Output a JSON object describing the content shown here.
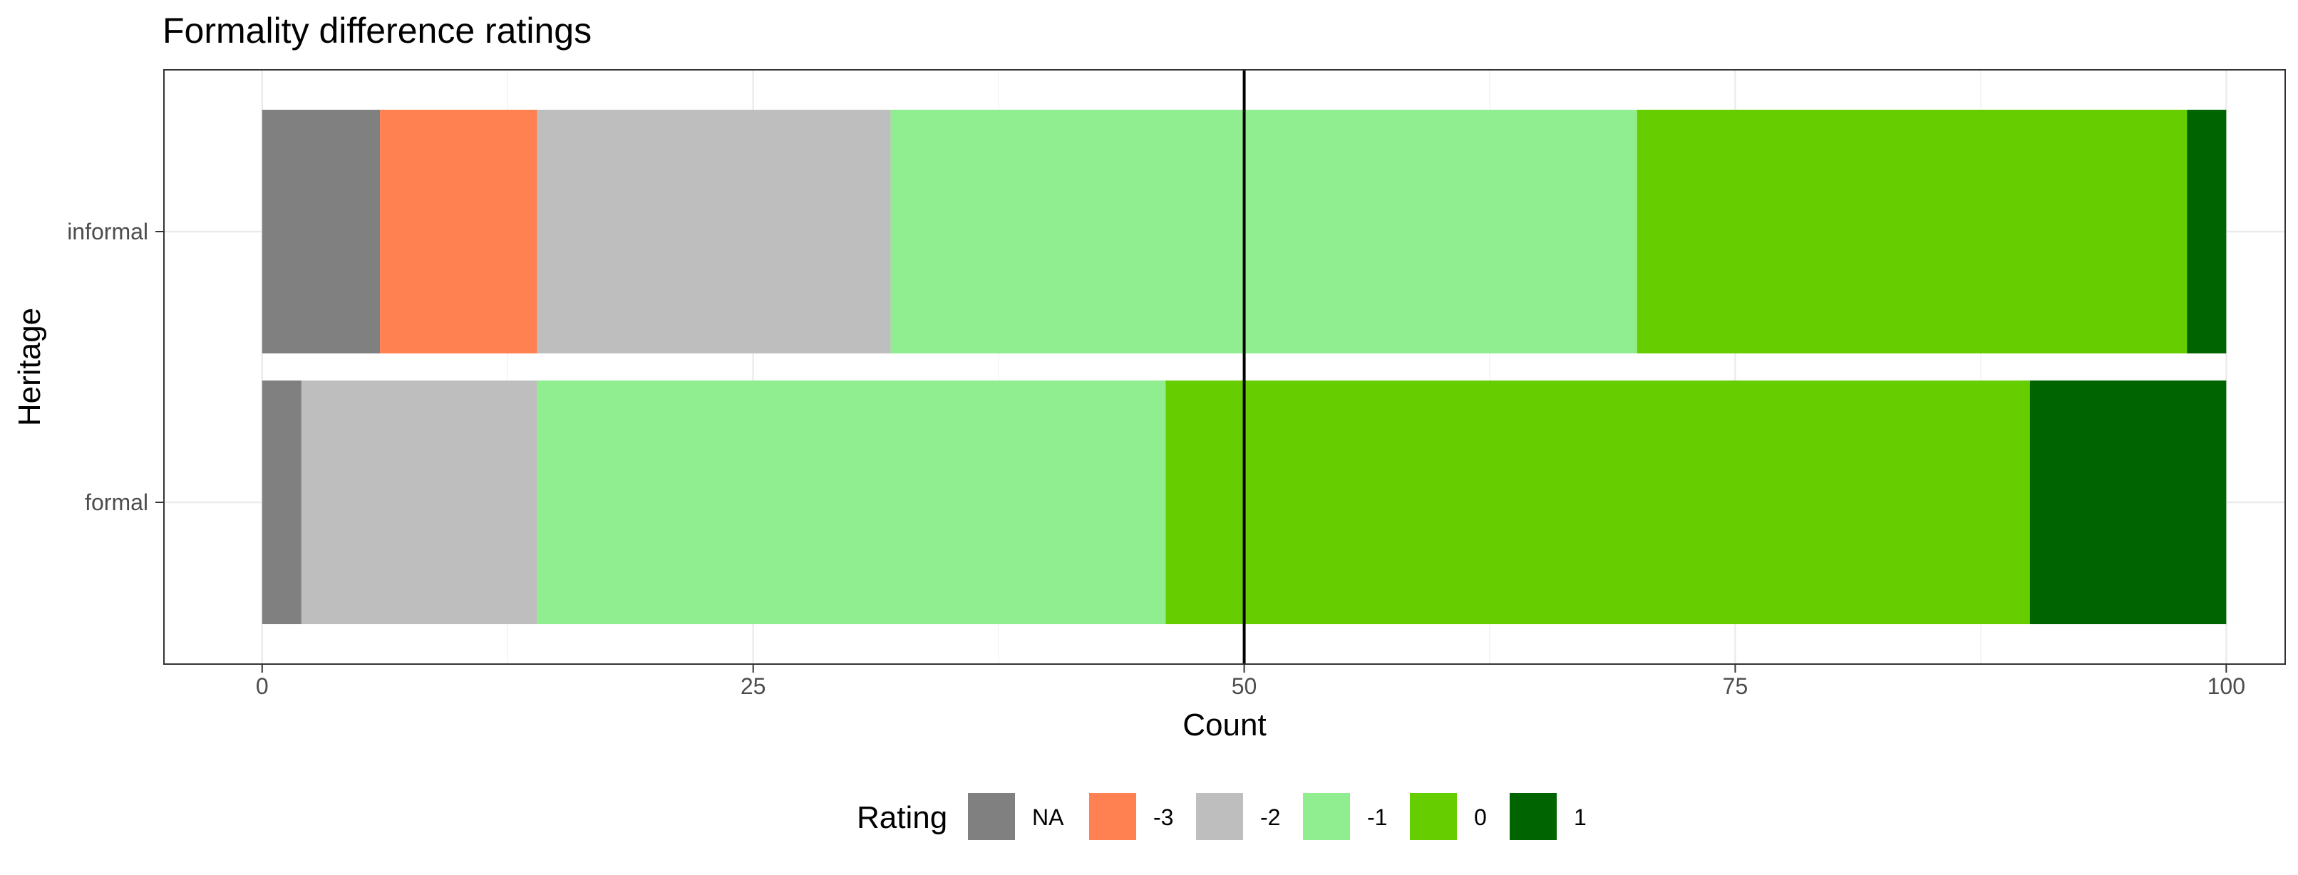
{
  "chart_data": {
    "type": "bar",
    "orientation": "horizontal",
    "stacked": true,
    "title": "Formality difference ratings",
    "xlabel": "Count",
    "ylabel": "Heritage",
    "xlim": [
      -5,
      103
    ],
    "x_ticks": [
      0,
      25,
      50,
      75,
      100
    ],
    "x_tick_labels": [
      "0",
      "25",
      "50",
      "75",
      "100"
    ],
    "reference_line_x": 50,
    "grid": true,
    "legend_position": "bottom",
    "legend_title": "Rating",
    "categories": [
      "informal",
      "formal"
    ],
    "series": [
      {
        "name": "NA",
        "color": "#808080",
        "values": [
          6,
          2
        ]
      },
      {
        "name": "-3",
        "color": "#FF8050",
        "values": [
          8,
          0
        ]
      },
      {
        "name": "-2",
        "color": "#BEBEBE",
        "values": [
          18,
          12
        ]
      },
      {
        "name": "-1",
        "color": "#90EE90",
        "values": [
          38,
          32
        ]
      },
      {
        "name": "0",
        "color": "#66CD00",
        "values": [
          28,
          44
        ]
      },
      {
        "name": "1",
        "color": "#006400",
        "values": [
          2,
          10
        ]
      }
    ]
  }
}
